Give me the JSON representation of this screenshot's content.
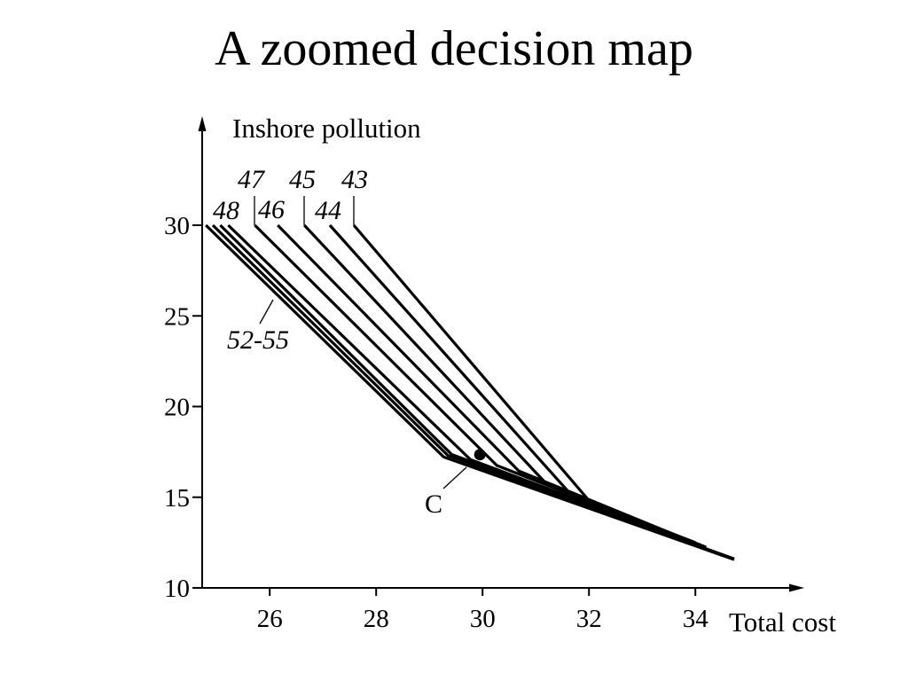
{
  "chart_data": {
    "type": "line",
    "title": "A zoomed decision map",
    "xlabel": "Total cost",
    "ylabel": "Inshore pollution",
    "xlim": [
      24.73,
      36.0
    ],
    "ylim": [
      10,
      35.8
    ],
    "x_ticks": [
      26,
      28,
      30,
      32,
      34
    ],
    "y_ticks": [
      10,
      15,
      20,
      25,
      30
    ],
    "grid": false,
    "legend": "none",
    "colors": {
      "line": "#000000",
      "background": "#ffffff"
    },
    "series": [
      {
        "name": "52-55",
        "lines": [
          [
            [
              24.8,
              30
            ],
            [
              29.27,
              17.22
            ],
            [
              34.73,
              11.56
            ]
          ],
          [
            [
              24.93,
              30
            ],
            [
              29.35,
              17.3
            ],
            [
              34.73,
              11.6
            ]
          ],
          [
            [
              25.07,
              30
            ],
            [
              29.42,
              17.36
            ],
            [
              34.5,
              11.8
            ]
          ]
        ]
      },
      {
        "name": "48",
        "lines": [
          [
            [
              25.22,
              30
            ],
            [
              29.77,
              17.08
            ],
            [
              34.2,
              12.2
            ]
          ]
        ]
      },
      {
        "name": "47",
        "lines": [
          [
            [
              25.72,
              30
            ],
            [
              30.27,
              16.75
            ],
            [
              34.2,
              12.25
            ]
          ]
        ]
      },
      {
        "name": "46",
        "lines": [
          [
            [
              26.15,
              30
            ],
            [
              30.68,
              16.45
            ],
            [
              34.1,
              12.35
            ]
          ]
        ]
      },
      {
        "name": "45",
        "lines": [
          [
            [
              26.65,
              30
            ],
            [
              31.18,
              15.8
            ],
            [
              34.0,
              12.45
            ]
          ]
        ]
      },
      {
        "name": "44",
        "lines": [
          [
            [
              27.13,
              30
            ],
            [
              31.6,
              15.35
            ],
            [
              34.0,
              12.45
            ]
          ]
        ]
      },
      {
        "name": "43",
        "lines": [
          [
            [
              27.58,
              30
            ],
            [
              32.02,
              14.75
            ],
            [
              34.0,
              12.5
            ]
          ]
        ]
      }
    ],
    "point": {
      "label": "C",
      "x": 29.95,
      "y": 17.35
    }
  }
}
